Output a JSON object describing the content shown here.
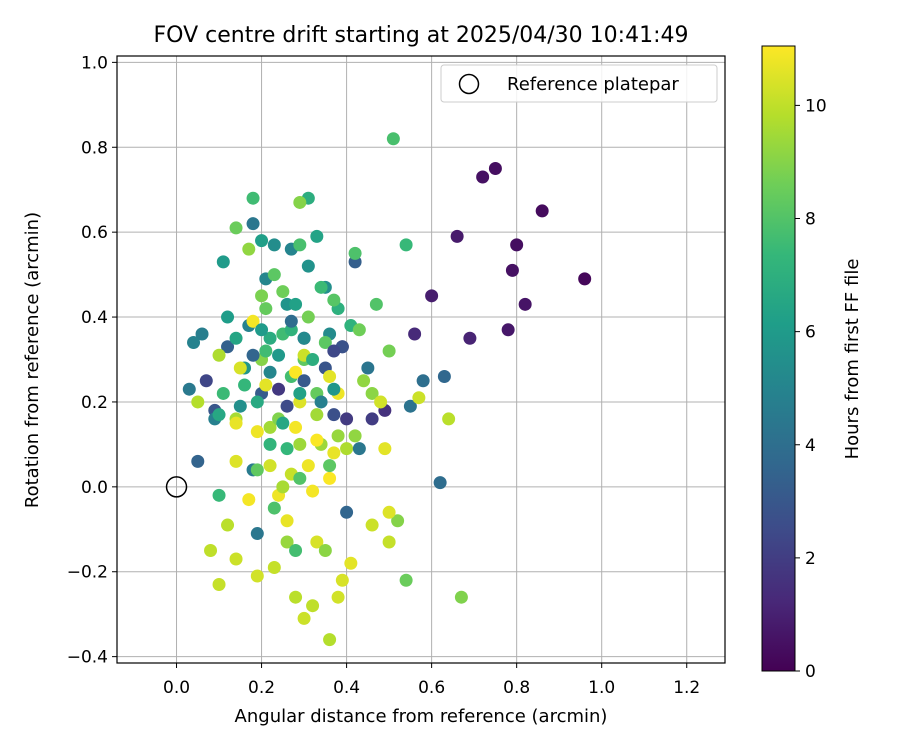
{
  "chart_data": {
    "type": "scatter",
    "title": "FOV centre drift starting at 2025/04/30 10:41:49",
    "xlabel": "Angular distance from reference (arcmin)",
    "ylabel": "Rotation from reference (arcmin)",
    "xlim": [
      -0.14,
      1.29
    ],
    "ylim": [
      -0.415,
      1.015
    ],
    "xticks": [
      0.0,
      0.2,
      0.4,
      0.6,
      0.8,
      1.0,
      1.2
    ],
    "yticks": [
      -0.4,
      -0.2,
      0.0,
      0.2,
      0.4,
      0.6,
      0.8,
      1.0
    ],
    "xtick_labels": [
      "0.0",
      "0.2",
      "0.4",
      "0.6",
      "0.8",
      "1.0",
      "1.2"
    ],
    "ytick_labels": [
      "−0.4",
      "−0.2",
      "0.0",
      "0.2",
      "0.4",
      "0.6",
      "0.8",
      "1.0"
    ],
    "grid": true,
    "legend": {
      "placement": "top-right",
      "entries": [
        {
          "label": "Reference platepar",
          "marker": "open-circle"
        }
      ]
    },
    "reference_point": {
      "x": 0.0,
      "y": 0.0
    },
    "colorbar": {
      "label": "Hours from first FF file",
      "colormap": "viridis",
      "range": [
        0,
        11.05
      ],
      "ticks": [
        0,
        2,
        4,
        6,
        8,
        10
      ],
      "tick_labels": [
        "0",
        "2",
        "4",
        "6",
        "8",
        "10"
      ],
      "colormap_stops": [
        "#440154",
        "#482878",
        "#3e4a89",
        "#31688e",
        "#26828e",
        "#1f9e89",
        "#35b779",
        "#6ece58",
        "#b5de2b",
        "#fde725"
      ]
    },
    "series": [
      {
        "colored_by": "hours",
        "points": [
          [
            0.96,
            0.49,
            0.2
          ],
          [
            0.86,
            0.65,
            0.3
          ],
          [
            0.75,
            0.75,
            0.4
          ],
          [
            0.72,
            0.73,
            0.5
          ],
          [
            0.8,
            0.57,
            0.4
          ],
          [
            0.79,
            0.51,
            0.5
          ],
          [
            0.82,
            0.43,
            0.6
          ],
          [
            0.78,
            0.37,
            0.7
          ],
          [
            0.66,
            0.59,
            0.8
          ],
          [
            0.6,
            0.45,
            0.9
          ],
          [
            0.69,
            0.35,
            1.1
          ],
          [
            0.56,
            0.36,
            1.3
          ],
          [
            0.49,
            0.18,
            1.6
          ],
          [
            0.46,
            0.16,
            2.0
          ],
          [
            0.39,
            0.33,
            2.2
          ],
          [
            0.26,
            0.19,
            2.5
          ],
          [
            0.3,
            0.35,
            2.6
          ],
          [
            0.37,
            0.17,
            2.7
          ],
          [
            0.35,
            0.28,
            2.9
          ],
          [
            0.07,
            0.25,
            2.3
          ],
          [
            0.09,
            0.18,
            3.0
          ],
          [
            0.2,
            0.22,
            3.2
          ],
          [
            0.05,
            0.06,
            3.5
          ],
          [
            0.12,
            0.33,
            3.4
          ],
          [
            0.4,
            -0.06,
            3.6
          ],
          [
            0.42,
            0.53,
            3.3
          ],
          [
            0.63,
            0.26,
            3.7
          ],
          [
            0.62,
            0.01,
            3.9
          ],
          [
            0.58,
            0.25,
            4.0
          ],
          [
            0.55,
            0.19,
            4.2
          ],
          [
            0.45,
            0.28,
            4.3
          ],
          [
            0.39,
            0.33,
            2.8
          ],
          [
            0.19,
            -0.11,
            4.4
          ],
          [
            0.18,
            0.04,
            4.6
          ],
          [
            0.09,
            0.16,
            4.8
          ],
          [
            0.03,
            0.23,
            4.5
          ],
          [
            0.06,
            0.36,
            4.7
          ],
          [
            0.04,
            0.34,
            4.9
          ],
          [
            0.18,
            0.62,
            4.4
          ],
          [
            0.17,
            0.38,
            4.9
          ],
          [
            0.21,
            0.49,
            5.1
          ],
          [
            0.27,
            0.56,
            5.0
          ],
          [
            0.3,
            0.35,
            5.2
          ],
          [
            0.36,
            0.36,
            5.3
          ],
          [
            0.23,
            0.57,
            5.4
          ],
          [
            0.35,
            0.47,
            5.5
          ],
          [
            0.31,
            0.52,
            5.6
          ],
          [
            0.26,
            0.43,
            5.7
          ],
          [
            0.16,
            0.28,
            5.8
          ],
          [
            0.24,
            0.31,
            5.9
          ],
          [
            0.11,
            0.53,
            6.0
          ],
          [
            0.12,
            0.4,
            6.1
          ],
          [
            0.2,
            0.58,
            6.2
          ],
          [
            0.28,
            0.43,
            6.3
          ],
          [
            0.33,
            0.59,
            6.4
          ],
          [
            0.14,
            0.35,
            6.5
          ],
          [
            0.1,
            0.17,
            6.6
          ],
          [
            0.19,
            0.2,
            6.7
          ],
          [
            0.22,
            0.35,
            6.8
          ],
          [
            0.31,
            0.68,
            6.9
          ],
          [
            0.38,
            0.42,
            7.0
          ],
          [
            0.41,
            0.38,
            7.1
          ],
          [
            0.22,
            0.1,
            7.2
          ],
          [
            0.26,
            0.09,
            7.3
          ],
          [
            0.1,
            -0.02,
            7.4
          ],
          [
            0.11,
            0.22,
            7.5
          ],
          [
            0.25,
            0.36,
            7.6
          ],
          [
            0.27,
            0.26,
            7.7
          ],
          [
            0.34,
            0.47,
            7.5
          ],
          [
            0.51,
            0.82,
            7.8
          ],
          [
            0.54,
            0.57,
            7.4
          ],
          [
            0.18,
            0.68,
            7.6
          ],
          [
            0.29,
            0.57,
            7.8
          ],
          [
            0.42,
            0.55,
            7.9
          ],
          [
            0.47,
            0.43,
            8.0
          ],
          [
            0.37,
            0.44,
            8.1
          ],
          [
            0.35,
            0.34,
            8.2
          ],
          [
            0.3,
            0.3,
            8.3
          ],
          [
            0.21,
            0.42,
            8.4
          ],
          [
            0.14,
            0.61,
            8.5
          ],
          [
            0.23,
            0.5,
            8.2
          ],
          [
            0.43,
            0.37,
            8.6
          ],
          [
            0.5,
            0.32,
            8.7
          ],
          [
            0.54,
            -0.22,
            8.5
          ],
          [
            0.67,
            -0.26,
            8.9
          ],
          [
            0.52,
            -0.08,
            9.0
          ],
          [
            0.46,
            0.22,
            9.1
          ],
          [
            0.44,
            0.25,
            9.2
          ],
          [
            0.38,
            0.12,
            9.3
          ],
          [
            0.34,
            0.1,
            9.4
          ],
          [
            0.22,
            0.14,
            9.5
          ],
          [
            0.2,
            0.45,
            8.8
          ],
          [
            0.29,
            0.67,
            9.0
          ],
          [
            0.17,
            0.56,
            9.2
          ],
          [
            0.14,
            0.16,
            9.6
          ],
          [
            0.1,
            0.31,
            9.7
          ],
          [
            0.05,
            0.2,
            9.8
          ],
          [
            0.12,
            -0.09,
            9.9
          ],
          [
            0.08,
            -0.15,
            10.0
          ],
          [
            0.1,
            -0.23,
            10.1
          ],
          [
            0.14,
            -0.17,
            10.2
          ],
          [
            0.19,
            -0.21,
            10.3
          ],
          [
            0.23,
            -0.19,
            10.1
          ],
          [
            0.28,
            -0.26,
            9.9
          ],
          [
            0.3,
            -0.31,
            10.2
          ],
          [
            0.32,
            -0.28,
            10.0
          ],
          [
            0.36,
            -0.36,
            9.8
          ],
          [
            0.38,
            -0.26,
            10.3
          ],
          [
            0.39,
            -0.22,
            10.4
          ],
          [
            0.46,
            -0.09,
            10.2
          ],
          [
            0.5,
            -0.13,
            10.1
          ],
          [
            0.5,
            -0.06,
            10.5
          ],
          [
            0.41,
            -0.18,
            10.6
          ],
          [
            0.33,
            -0.13,
            10.4
          ],
          [
            0.26,
            -0.08,
            10.7
          ],
          [
            0.24,
            -0.02,
            10.8
          ],
          [
            0.32,
            -0.01,
            10.9
          ],
          [
            0.36,
            0.02,
            11.0
          ],
          [
            0.31,
            0.05,
            10.8
          ],
          [
            0.28,
            0.14,
            10.9
          ],
          [
            0.33,
            0.11,
            11.0
          ],
          [
            0.37,
            0.08,
            10.7
          ],
          [
            0.38,
            0.22,
            10.8
          ],
          [
            0.36,
            0.26,
            10.6
          ],
          [
            0.48,
            0.2,
            10.3
          ],
          [
            0.57,
            0.21,
            10.2
          ],
          [
            0.64,
            0.16,
            9.9
          ],
          [
            0.49,
            0.09,
            10.6
          ],
          [
            0.17,
            -0.03,
            10.9
          ],
          [
            0.14,
            0.06,
            10.5
          ],
          [
            0.21,
            0.24,
            10.6
          ],
          [
            0.19,
            0.13,
            10.8
          ],
          [
            0.18,
            0.39,
            10.9
          ],
          [
            0.28,
            0.27,
            11.0
          ],
          [
            0.29,
            0.2,
            10.5
          ],
          [
            0.3,
            0.31,
            10.2
          ],
          [
            0.15,
            0.28,
            10.4
          ],
          [
            0.14,
            0.15,
            10.7
          ],
          [
            0.22,
            0.05,
            10.3
          ],
          [
            0.27,
            0.03,
            10.1
          ],
          [
            0.25,
            0.0,
            9.6
          ],
          [
            0.29,
            0.1,
            9.4
          ],
          [
            0.33,
            0.17,
            9.5
          ],
          [
            0.4,
            0.09,
            9.7
          ],
          [
            0.42,
            0.12,
            9.2
          ],
          [
            0.26,
            -0.13,
            9.3
          ],
          [
            0.35,
            -0.15,
            9.1
          ],
          [
            0.2,
            0.3,
            9.0
          ],
          [
            0.24,
            0.16,
            8.9
          ],
          [
            0.31,
            0.4,
            8.7
          ],
          [
            0.25,
            0.46,
            8.6
          ],
          [
            0.33,
            0.22,
            8.4
          ],
          [
            0.19,
            0.04,
            8.3
          ],
          [
            0.36,
            0.05,
            8.2
          ],
          [
            0.29,
            0.02,
            8.0
          ],
          [
            0.23,
            -0.05,
            7.9
          ],
          [
            0.28,
            -0.15,
            7.7
          ],
          [
            0.21,
            0.32,
            7.6
          ],
          [
            0.16,
            0.24,
            7.3
          ],
          [
            0.27,
            0.37,
            7.1
          ],
          [
            0.32,
            0.3,
            6.9
          ],
          [
            0.25,
            0.15,
            6.6
          ],
          [
            0.29,
            0.22,
            6.3
          ],
          [
            0.2,
            0.37,
            6.0
          ],
          [
            0.37,
            0.23,
            5.8
          ],
          [
            0.15,
            0.19,
            5.5
          ],
          [
            0.22,
            0.27,
            5.1
          ],
          [
            0.34,
            0.2,
            4.8
          ],
          [
            0.43,
            0.09,
            4.4
          ],
          [
            0.27,
            0.39,
            3.9
          ],
          [
            0.18,
            0.31,
            3.6
          ],
          [
            0.3,
            0.25,
            3.1
          ],
          [
            0.37,
            0.32,
            2.4
          ],
          [
            0.4,
            0.16,
            1.9
          ],
          [
            0.24,
            0.23,
            1.8
          ]
        ]
      }
    ]
  }
}
